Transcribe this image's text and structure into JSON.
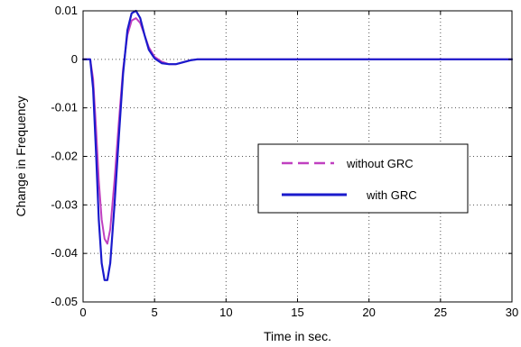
{
  "chart_data": {
    "type": "line",
    "xlabel": "Time in sec.",
    "ylabel": "Change in Frequency",
    "xlim": [
      0,
      30
    ],
    "ylim": [
      -0.05,
      0.01
    ],
    "x_ticks": [
      0,
      5,
      10,
      15,
      20,
      25,
      30
    ],
    "y_ticks": [
      -0.05,
      -0.04,
      -0.03,
      -0.02,
      -0.01,
      0,
      0.01
    ],
    "y_tick_labels": [
      "-0.05",
      "-0.04",
      "-0.03",
      "-0.02",
      "-0.01",
      "0",
      "0.01"
    ],
    "grid": true,
    "legend_position": "center-right",
    "series": [
      {
        "name": "without GRC",
        "color": "#c040c0",
        "style": "dashed",
        "x": [
          0,
          0.5,
          0.7,
          0.9,
          1.1,
          1.3,
          1.5,
          1.7,
          1.9,
          2.2,
          2.5,
          2.8,
          3.1,
          3.4,
          3.7,
          4.0,
          4.3,
          4.6,
          5.0,
          5.5,
          6.0,
          6.5,
          7.0,
          7.5,
          8.0,
          8.5,
          10,
          15,
          20,
          25,
          30
        ],
        "y": [
          0,
          0,
          -0.004,
          -0.014,
          -0.025,
          -0.033,
          -0.037,
          -0.038,
          -0.035,
          -0.025,
          -0.013,
          -0.002,
          0.005,
          0.008,
          0.0085,
          0.0075,
          0.005,
          0.0025,
          0.0005,
          -0.0005,
          -0.001,
          -0.001,
          -0.0006,
          -0.0002,
          0,
          0,
          0,
          0,
          0,
          0,
          0
        ]
      },
      {
        "name": "with GRC",
        "color": "#1a1acc",
        "style": "solid",
        "x": [
          0,
          0.5,
          0.7,
          0.9,
          1.1,
          1.3,
          1.5,
          1.7,
          1.9,
          2.2,
          2.5,
          2.8,
          3.1,
          3.4,
          3.7,
          4.0,
          4.3,
          4.6,
          5.0,
          5.5,
          6.0,
          6.5,
          7.0,
          7.5,
          8.0,
          8.5,
          10,
          15,
          20,
          25,
          30
        ],
        "y": [
          0,
          0,
          -0.006,
          -0.019,
          -0.033,
          -0.042,
          -0.0455,
          -0.0455,
          -0.042,
          -0.03,
          -0.016,
          -0.003,
          0.006,
          0.0095,
          0.01,
          0.0085,
          0.005,
          0.002,
          0.0002,
          -0.0008,
          -0.001,
          -0.001,
          -0.0006,
          -0.0002,
          0,
          0,
          0,
          0,
          0,
          0,
          0
        ]
      }
    ]
  }
}
